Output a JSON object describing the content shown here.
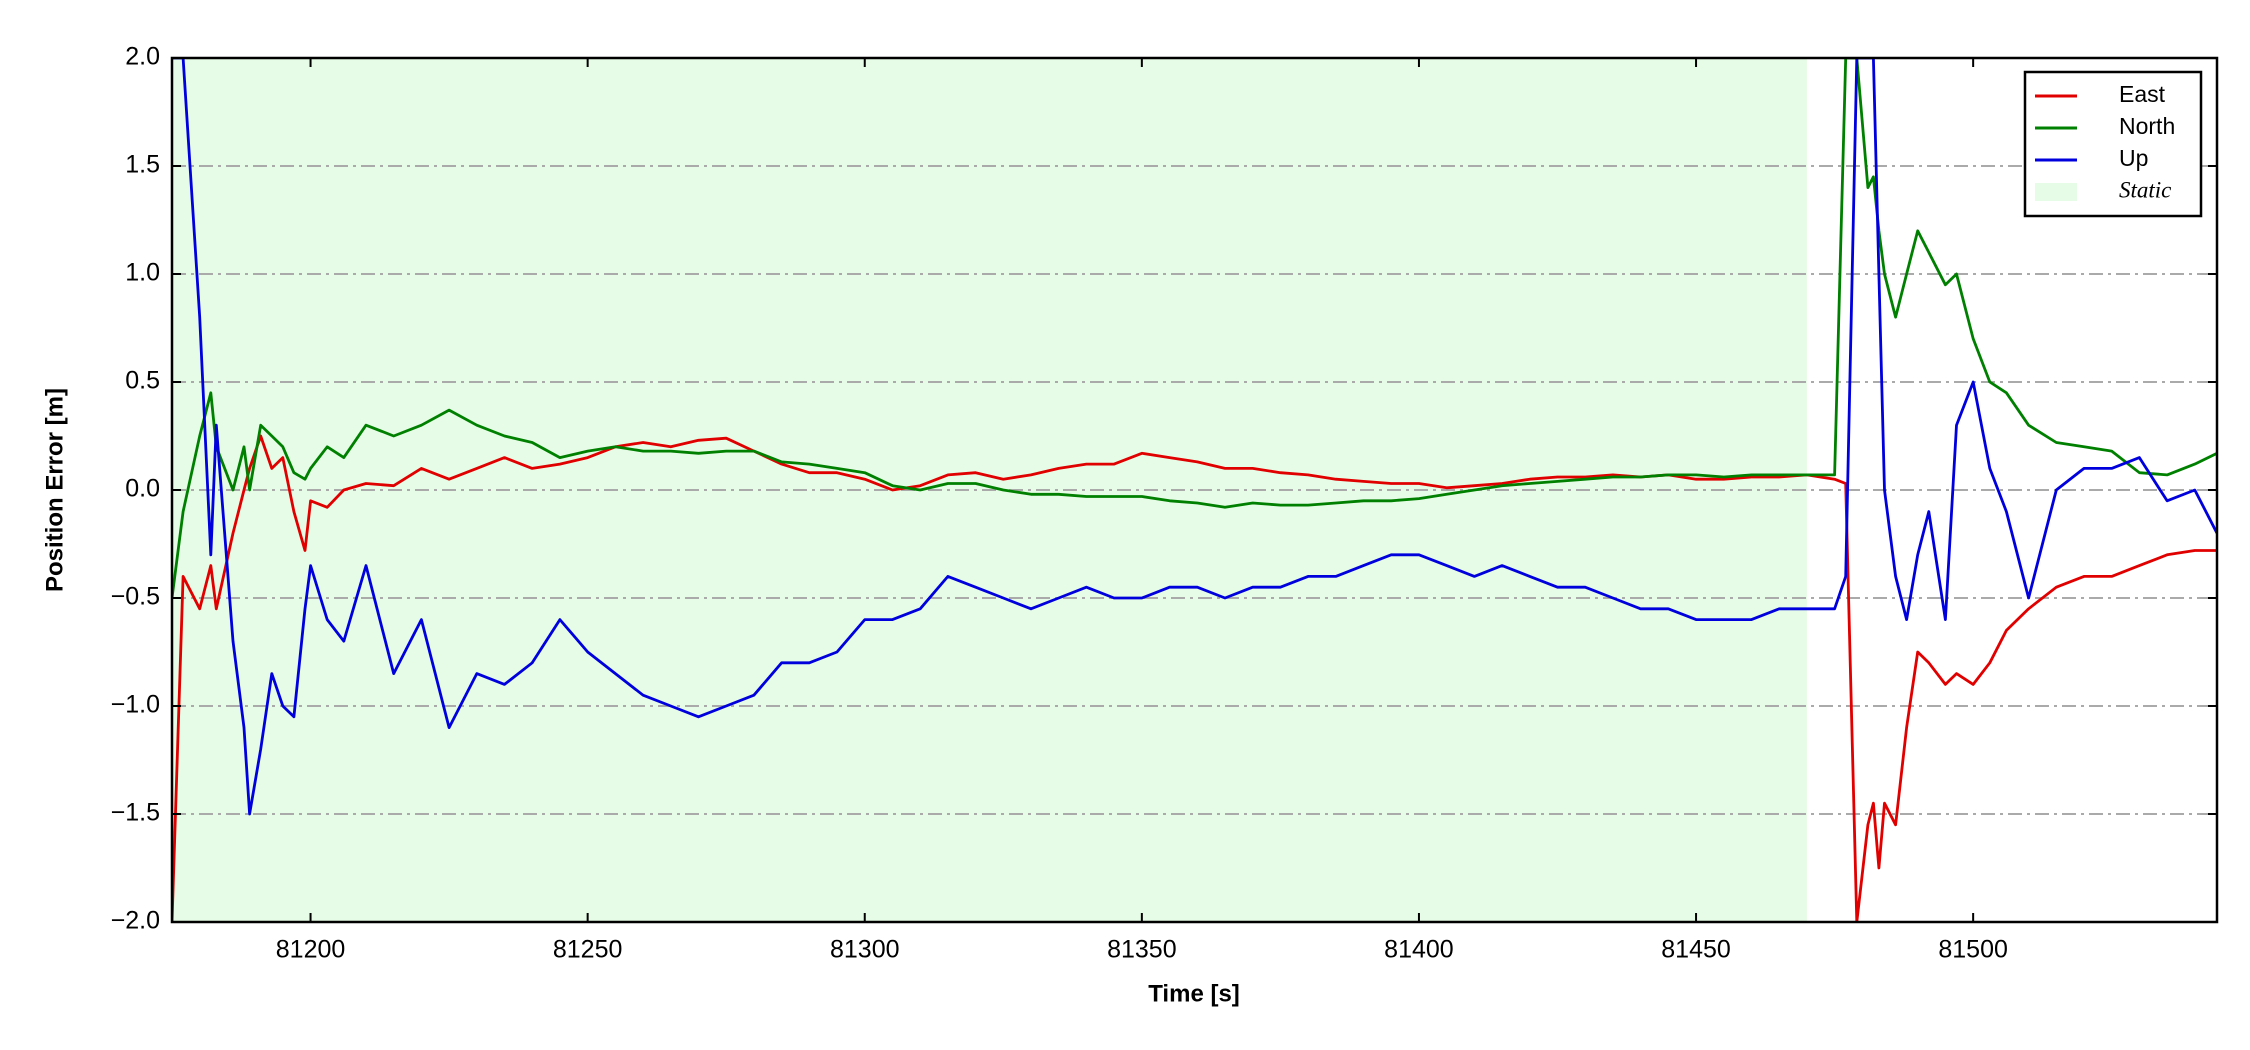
{
  "chart_data": {
    "type": "line",
    "xlabel": "Time [s]",
    "ylabel": "Position Error [m]",
    "x": [
      81175,
      81177,
      81180,
      81182,
      81183,
      81186,
      81188,
      81189,
      81191,
      81193,
      81195,
      81197,
      81199,
      81200,
      81203,
      81206,
      81210,
      81215,
      81220,
      81225,
      81230,
      81235,
      81240,
      81245,
      81250,
      81255,
      81260,
      81265,
      81270,
      81275,
      81280,
      81285,
      81290,
      81295,
      81300,
      81305,
      81310,
      81315,
      81320,
      81325,
      81330,
      81335,
      81340,
      81345,
      81350,
      81355,
      81360,
      81365,
      81370,
      81375,
      81380,
      81385,
      81390,
      81395,
      81400,
      81405,
      81410,
      81415,
      81420,
      81425,
      81430,
      81435,
      81440,
      81445,
      81450,
      81455,
      81460,
      81465,
      81470,
      81475,
      81477,
      81479,
      81481,
      81482,
      81483,
      81484,
      81486,
      81488,
      81490,
      81492,
      81495,
      81497,
      81500,
      81503,
      81506,
      81510,
      81515,
      81520,
      81525,
      81530,
      81535,
      81540,
      81544
    ],
    "series": [
      {
        "name": "East",
        "color": "#e00000",
        "values": [
          -2.0,
          -0.4,
          -0.55,
          -0.35,
          -0.55,
          -0.2,
          0.0,
          0.1,
          0.25,
          0.1,
          0.15,
          -0.1,
          -0.28,
          -0.05,
          -0.08,
          0.0,
          0.03,
          0.02,
          0.1,
          0.05,
          0.1,
          0.15,
          0.1,
          0.12,
          0.15,
          0.2,
          0.22,
          0.2,
          0.23,
          0.24,
          0.18,
          0.12,
          0.08,
          0.08,
          0.05,
          0.0,
          0.02,
          0.07,
          0.08,
          0.05,
          0.07,
          0.1,
          0.12,
          0.12,
          0.17,
          0.15,
          0.13,
          0.1,
          0.1,
          0.08,
          0.07,
          0.05,
          0.04,
          0.03,
          0.03,
          0.01,
          0.02,
          0.03,
          0.05,
          0.06,
          0.06,
          0.07,
          0.06,
          0.07,
          0.05,
          0.05,
          0.06,
          0.06,
          0.07,
          0.05,
          0.03,
          -2.0,
          -1.55,
          -1.45,
          -1.75,
          -1.45,
          -1.55,
          -1.1,
          -0.75,
          -0.8,
          -0.9,
          -0.85,
          -0.9,
          -0.8,
          -0.65,
          -0.55,
          -0.45,
          -0.4,
          -0.4,
          -0.35,
          -0.3,
          -0.28,
          -0.28
        ]
      },
      {
        "name": "North",
        "color": "#008000",
        "values": [
          -0.5,
          -0.1,
          0.25,
          0.45,
          0.2,
          0.0,
          0.2,
          0.0,
          0.3,
          0.25,
          0.2,
          0.08,
          0.05,
          0.1,
          0.2,
          0.15,
          0.3,
          0.25,
          0.3,
          0.37,
          0.3,
          0.25,
          0.22,
          0.15,
          0.18,
          0.2,
          0.18,
          0.18,
          0.17,
          0.18,
          0.18,
          0.13,
          0.12,
          0.1,
          0.08,
          0.02,
          0.0,
          0.03,
          0.03,
          0.0,
          -0.02,
          -0.02,
          -0.03,
          -0.03,
          -0.03,
          -0.05,
          -0.06,
          -0.08,
          -0.06,
          -0.07,
          -0.07,
          -0.06,
          -0.05,
          -0.05,
          -0.04,
          -0.02,
          0.0,
          0.02,
          0.03,
          0.04,
          0.05,
          0.06,
          0.06,
          0.07,
          0.07,
          0.06,
          0.07,
          0.07,
          0.07,
          0.07,
          2.0,
          2.0,
          1.4,
          1.45,
          1.2,
          1.0,
          0.8,
          1.0,
          1.2,
          1.1,
          0.95,
          1.0,
          0.7,
          0.5,
          0.45,
          0.3,
          0.22,
          0.2,
          0.18,
          0.08,
          0.07,
          0.12,
          0.17
        ]
      },
      {
        "name": "Up",
        "color": "#0000dd",
        "values": [
          2.0,
          2.0,
          0.8,
          -0.3,
          0.3,
          -0.7,
          -1.1,
          -1.5,
          -1.2,
          -0.85,
          -1.0,
          -1.05,
          -0.55,
          -0.35,
          -0.6,
          -0.7,
          -0.35,
          -0.85,
          -0.6,
          -1.1,
          -0.85,
          -0.9,
          -0.8,
          -0.6,
          -0.75,
          -0.85,
          -0.95,
          -1.0,
          -1.05,
          -1.0,
          -0.95,
          -0.8,
          -0.8,
          -0.75,
          -0.6,
          -0.6,
          -0.55,
          -0.4,
          -0.45,
          -0.5,
          -0.55,
          -0.5,
          -0.45,
          -0.5,
          -0.5,
          -0.45,
          -0.45,
          -0.5,
          -0.45,
          -0.45,
          -0.4,
          -0.4,
          -0.35,
          -0.3,
          -0.3,
          -0.35,
          -0.4,
          -0.35,
          -0.4,
          -0.45,
          -0.45,
          -0.5,
          -0.55,
          -0.55,
          -0.6,
          -0.6,
          -0.6,
          -0.55,
          -0.55,
          -0.55,
          -0.4,
          2.0,
          2.0,
          2.0,
          1.0,
          0.0,
          -0.4,
          -0.6,
          -0.3,
          -0.1,
          -0.6,
          0.3,
          0.5,
          0.1,
          -0.1,
          -0.5,
          0.0,
          0.1,
          0.1,
          0.15,
          -0.05,
          0.0,
          -0.2
        ]
      }
    ],
    "shaded_region": {
      "label": "Static",
      "range": [
        81175,
        81470
      ],
      "color": "#e6fce6"
    },
    "xlim": [
      81175,
      81544
    ],
    "ylim": [
      -2.0,
      2.0
    ],
    "xticks": [
      81200,
      81250,
      81300,
      81350,
      81400,
      81450,
      81500
    ],
    "yticks": [
      {
        "value": -2.0,
        "label": "−2.0"
      },
      {
        "value": -1.5,
        "label": "−1.5"
      },
      {
        "value": -1.0,
        "label": "−1.0"
      },
      {
        "value": -0.5,
        "label": "−0.5"
      },
      {
        "value": 0.0,
        "label": "0.0"
      },
      {
        "value": 0.5,
        "label": "0.5"
      },
      {
        "value": 1.0,
        "label": "1.0"
      },
      {
        "value": 1.5,
        "label": "1.5"
      },
      {
        "value": 2.0,
        "label": "2.0"
      }
    ],
    "grid": true,
    "legend": "upper right"
  }
}
